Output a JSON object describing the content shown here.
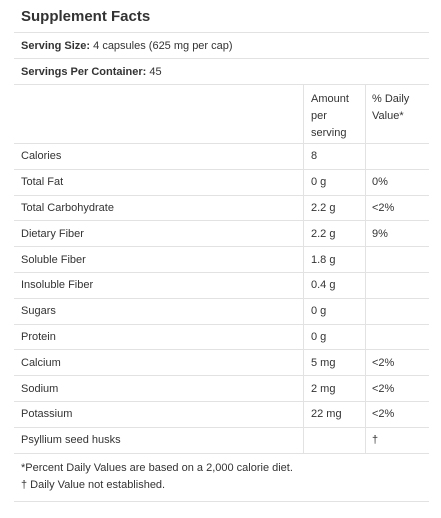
{
  "title": "Supplement Facts",
  "serving_size": {
    "label": "Serving Size:",
    "value": "4 capsules (625 mg per cap)"
  },
  "servings_per_container": {
    "label": "Servings Per Container:",
    "value": "45"
  },
  "columns": {
    "amount": "Amount per serving",
    "daily_value": "% Daily Value*"
  },
  "rows": [
    {
      "name": "Calories",
      "amount": "8",
      "dv": ""
    },
    {
      "name": "Total Fat",
      "amount": "0 g",
      "dv": "0%"
    },
    {
      "name": "Total Carbohydrate",
      "amount": "2.2 g",
      "dv": "<2%"
    },
    {
      "name": "Dietary Fiber",
      "amount": "2.2 g",
      "dv": "9%"
    },
    {
      "name": "Soluble Fiber",
      "amount": "1.8 g",
      "dv": ""
    },
    {
      "name": "Insoluble Fiber",
      "amount": "0.4 g",
      "dv": ""
    },
    {
      "name": "Sugars",
      "amount": "0 g",
      "dv": ""
    },
    {
      "name": "Protein",
      "amount": "0 g",
      "dv": ""
    },
    {
      "name": "Calcium",
      "amount": "5 mg",
      "dv": "<2%"
    },
    {
      "name": "Sodium",
      "amount": "2 mg",
      "dv": "<2%"
    },
    {
      "name": "Potassium",
      "amount": "22 mg",
      "dv": "<2%"
    },
    {
      "name": "Psyllium seed husks",
      "amount": "",
      "dv": "†"
    }
  ],
  "footnotes": [
    "*Percent Daily Values are based on a 2,000 calorie diet.",
    "† Daily Value not established."
  ]
}
